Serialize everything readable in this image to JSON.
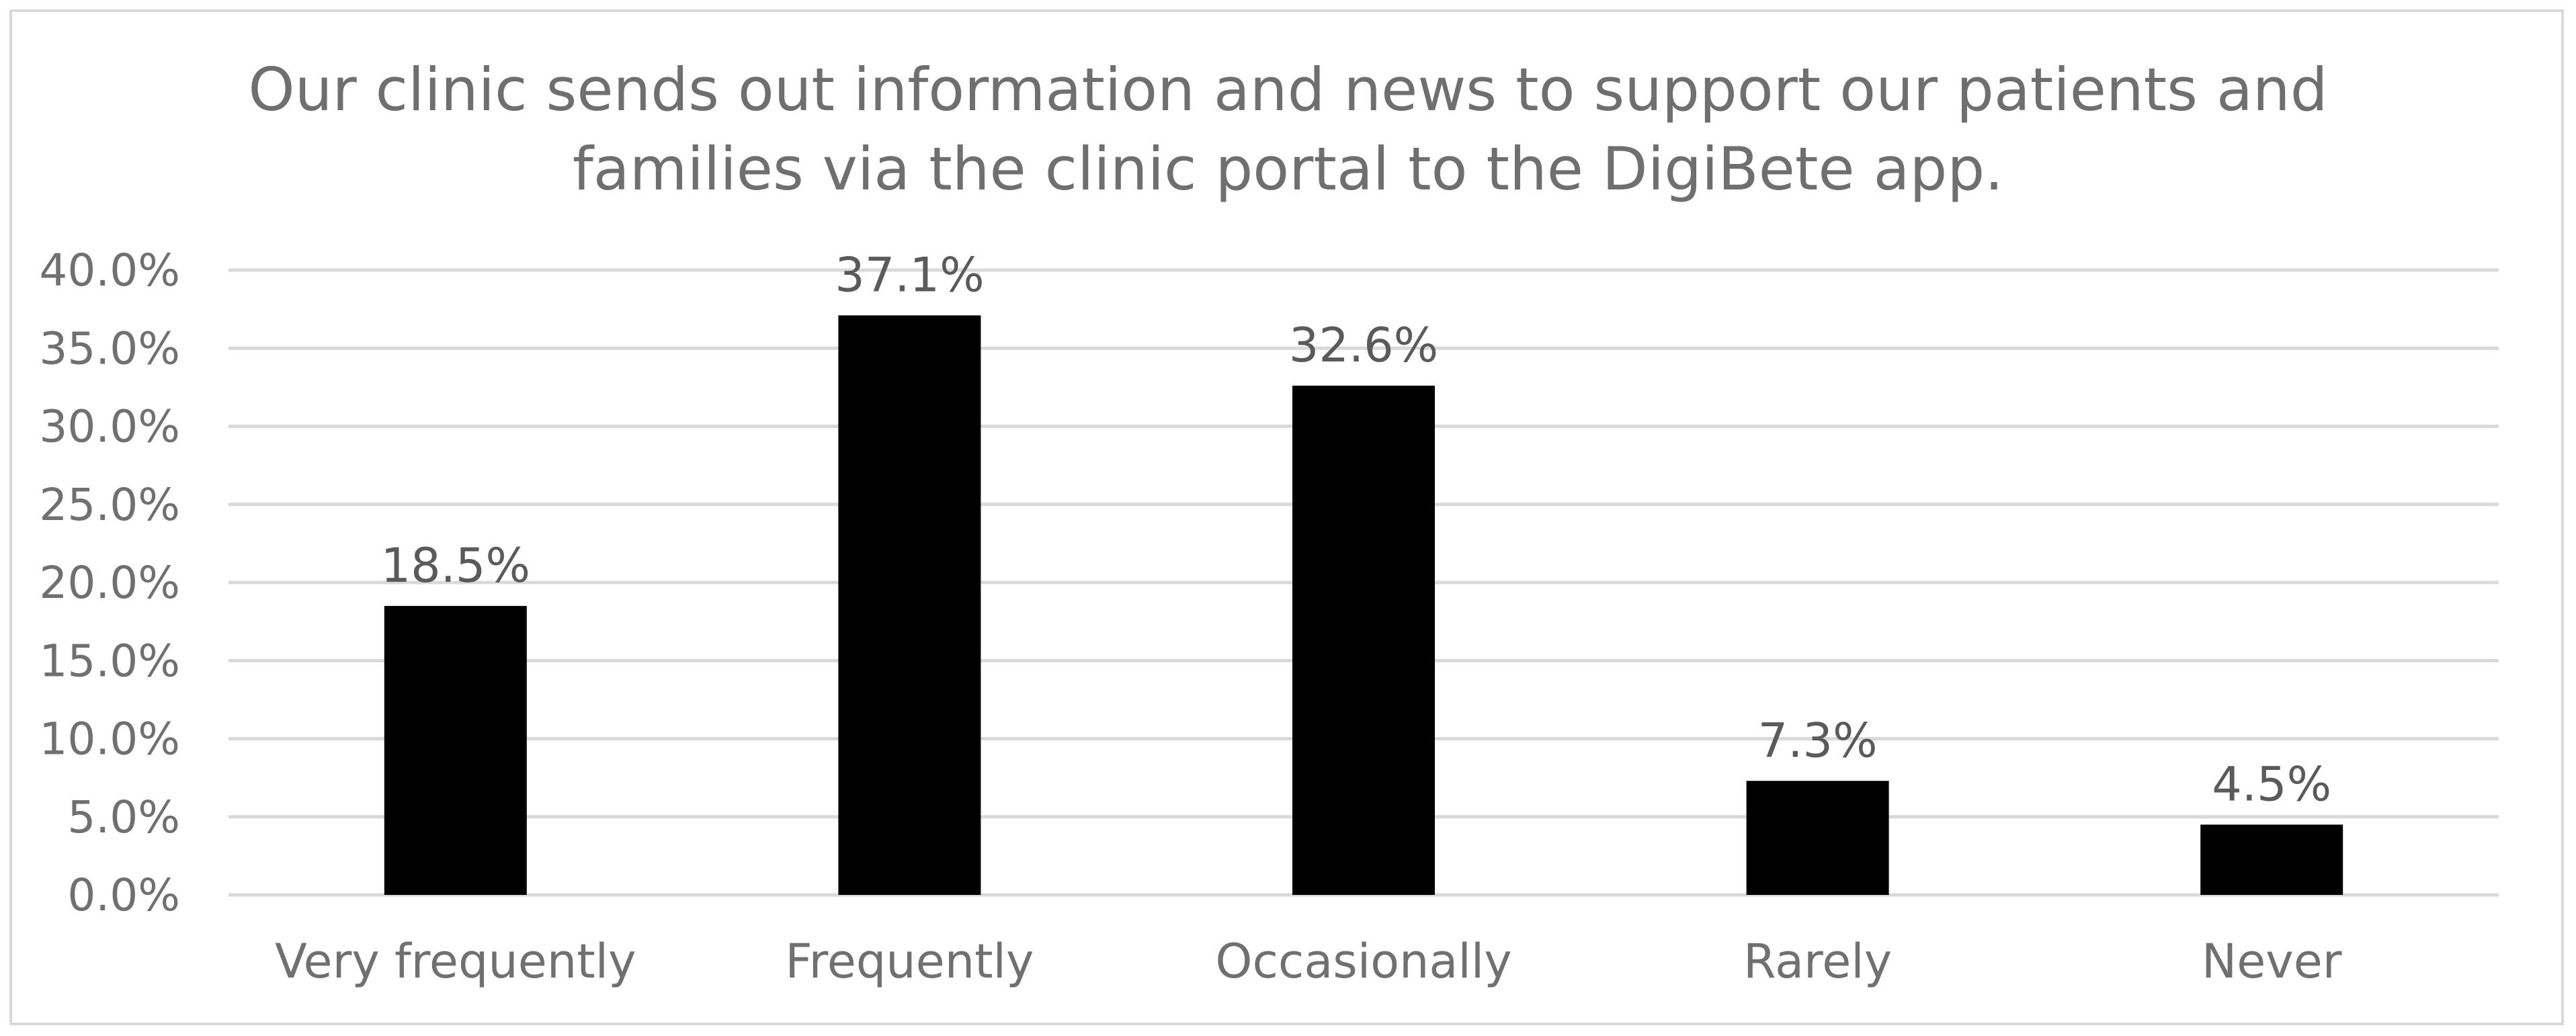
{
  "chart_data": {
    "type": "bar",
    "title": "Our clinic sends out information and news to support our patients and\nfamilies via the clinic portal to the DigiBete app.",
    "categories": [
      "Very frequently",
      "Frequently",
      "Occasionally",
      "Rarely",
      "Never"
    ],
    "values": [
      18.5,
      37.1,
      32.6,
      7.3,
      4.5
    ],
    "data_labels": [
      "18.5%",
      "37.1%",
      "32.6%",
      "7.3%",
      "4.5%"
    ],
    "y_ticks": [
      0,
      5,
      10,
      15,
      20,
      25,
      30,
      35,
      40
    ],
    "y_tick_labels": [
      "0.0%",
      "5.0%",
      "10.0%",
      "15.0%",
      "20.0%",
      "25.0%",
      "30.0%",
      "35.0%",
      "40.0%"
    ],
    "ylim": [
      0,
      40
    ],
    "xlabel": "",
    "ylabel": "",
    "grid": true,
    "legend": "none",
    "colors": {
      "bar": "#000000",
      "grid": "#d9d9d9",
      "text": "#707070",
      "frame": "#d9d9d9"
    }
  }
}
